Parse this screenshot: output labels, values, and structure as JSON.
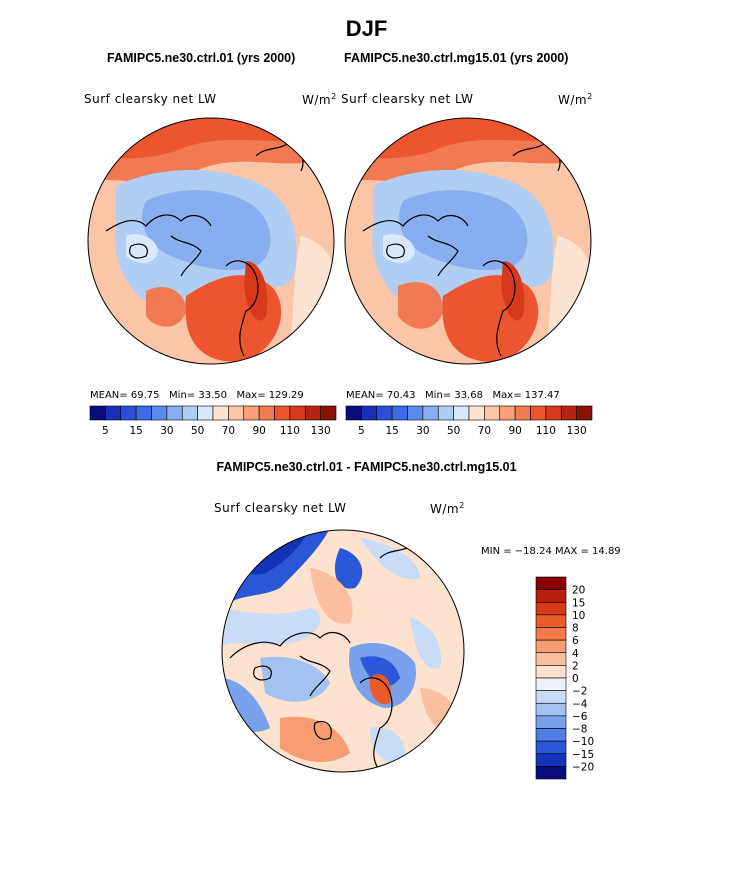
{
  "figure_title": "DJF",
  "panels": [
    {
      "subtitle": "FAMIPC5.ne30.ctrl.01 (yrs 2000)",
      "variable_label": "Surf clearsky net LW",
      "units_text": "W/m",
      "units_exp": "2",
      "stats": {
        "mean_label": "MEAN=",
        "mean": "69.75",
        "min_label": "Min=",
        "min": "33.50",
        "max_label": "Max=",
        "max": "129.29"
      }
    },
    {
      "subtitle": "FAMIPC5.ne30.ctrl.mg15.01 (yrs 2000)",
      "variable_label": "Surf clearsky net LW",
      "units_text": "W/m",
      "units_exp": "2",
      "stats": {
        "mean_label": "MEAN=",
        "mean": "70.43",
        "min_label": "Min=",
        "min": "33.68",
        "max_label": "Max=",
        "max": "137.47"
      }
    }
  ],
  "diff_panel": {
    "subtitle": "FAMIPC5.ne30.ctrl.01 - FAMIPC5.ne30.ctrl.mg15.01",
    "variable_label": "Surf clearsky net LW",
    "units_text": "W/m",
    "units_exp": "2",
    "minmax_text": "MIN = −18.24  MAX =   14.89"
  },
  "chart_data": [
    {
      "type": "heatmap",
      "projection": "north-polar-stereographic",
      "title": "FAMIPC5.ne30.ctrl.01 (yrs 2000)",
      "variable": "Surf clearsky net LW",
      "units": "W/m2",
      "mean": 69.75,
      "min": 33.5,
      "max": 129.29,
      "colorbar_ticks": [
        "5",
        "15",
        "30",
        "50",
        "70",
        "90",
        "110",
        "130"
      ],
      "colorbar_colors": [
        "#0a0a80",
        "#1a2fb8",
        "#2a4fd8",
        "#3b6ce6",
        "#5b8bea",
        "#86aef0",
        "#b0cdf4",
        "#d9e8fa",
        "#fde4d2",
        "#fbc6a8",
        "#f7a07a",
        "#f27a52",
        "#ec5530",
        "#d8381c",
        "#b22314",
        "#8a1206"
      ]
    },
    {
      "type": "heatmap",
      "projection": "north-polar-stereographic",
      "title": "FAMIPC5.ne30.ctrl.mg15.01 (yrs 2000)",
      "variable": "Surf clearsky net LW",
      "units": "W/m2",
      "mean": 70.43,
      "min": 33.68,
      "max": 137.47,
      "colorbar_ticks": [
        "5",
        "15",
        "30",
        "50",
        "70",
        "90",
        "110",
        "130"
      ],
      "colorbar_colors": [
        "#0a0a80",
        "#1a2fb8",
        "#2a4fd8",
        "#3b6ce6",
        "#5b8bea",
        "#86aef0",
        "#b0cdf4",
        "#d9e8fa",
        "#fde4d2",
        "#fbc6a8",
        "#f7a07a",
        "#f27a52",
        "#ec5530",
        "#d8381c",
        "#b22314",
        "#8a1206"
      ]
    },
    {
      "type": "heatmap",
      "projection": "north-polar-stereographic",
      "title": "FAMIPC5.ne30.ctrl.01 - FAMIPC5.ne30.ctrl.mg15.01",
      "variable": "Surf clearsky net LW",
      "units": "W/m2",
      "min": -18.24,
      "max": 14.89,
      "colorbar_ticks": [
        "20",
        "15",
        "10",
        "8",
        "6",
        "4",
        "2",
        "0",
        "−2",
        "−4",
        "−6",
        "−8",
        "−10",
        "−15",
        "−20"
      ],
      "colorbar_colors": [
        "#8b0000",
        "#b8200c",
        "#d83a18",
        "#ec5a2a",
        "#f47a48",
        "#f89c72",
        "#fbbf9e",
        "#fde2cf",
        "#eef3fa",
        "#c9dcf6",
        "#a3c2f2",
        "#7aa2ec",
        "#4f7de4",
        "#2a56d8",
        "#1233b8",
        "#0a0a7c"
      ]
    }
  ]
}
